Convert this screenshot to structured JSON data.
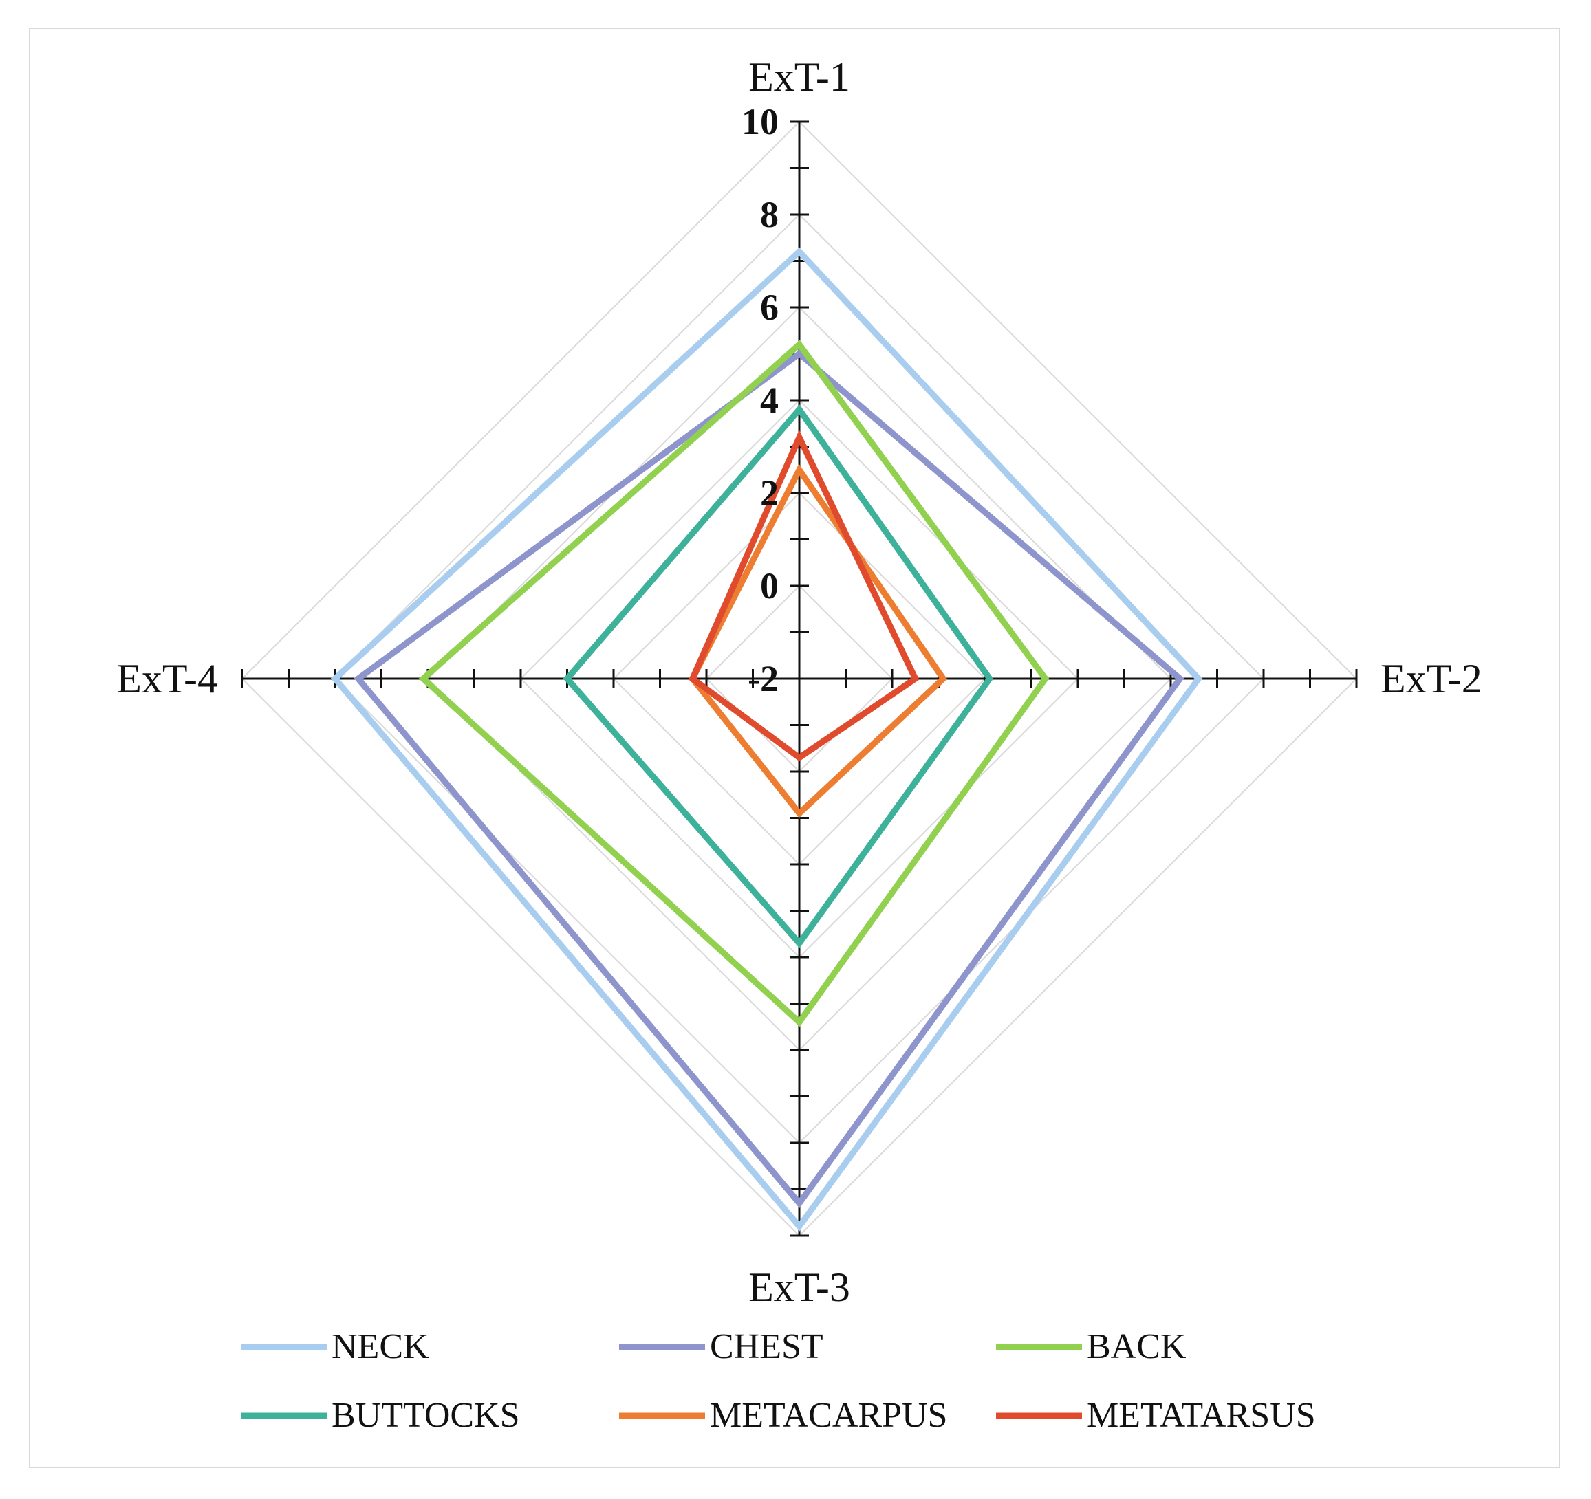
{
  "chart_data": {
    "type": "radar",
    "axes": [
      "ExT-1",
      "ExT-2",
      "ExT-3",
      "ExT-4"
    ],
    "range": [
      -2,
      10
    ],
    "tick_step": 2,
    "minor_step": 1,
    "tick_labels": [
      "-2",
      "0",
      "2",
      "4",
      "6",
      "8",
      "10"
    ],
    "grid": true,
    "legend_position": "bottom",
    "series": [
      {
        "name": "NECK",
        "color": "#a9cdef",
        "values": [
          7.2,
          6.6,
          9.8,
          8.0
        ]
      },
      {
        "name": "CHEST",
        "color": "#8e94cc",
        "values": [
          5.0,
          6.2,
          9.3,
          7.5
        ]
      },
      {
        "name": "BACK",
        "color": "#92d050",
        "values": [
          5.2,
          3.3,
          5.4,
          6.1
        ]
      },
      {
        "name": "BUTTOCKS",
        "color": "#3db19a",
        "values": [
          3.8,
          2.1,
          3.7,
          3.0
        ]
      },
      {
        "name": "METACARPUS",
        "color": "#ed7d31",
        "values": [
          2.5,
          1.1,
          0.9,
          0.3
        ]
      },
      {
        "name": "METATARSUS",
        "color": "#e04b2e",
        "values": [
          3.2,
          0.5,
          -0.3,
          0.3
        ]
      }
    ]
  }
}
